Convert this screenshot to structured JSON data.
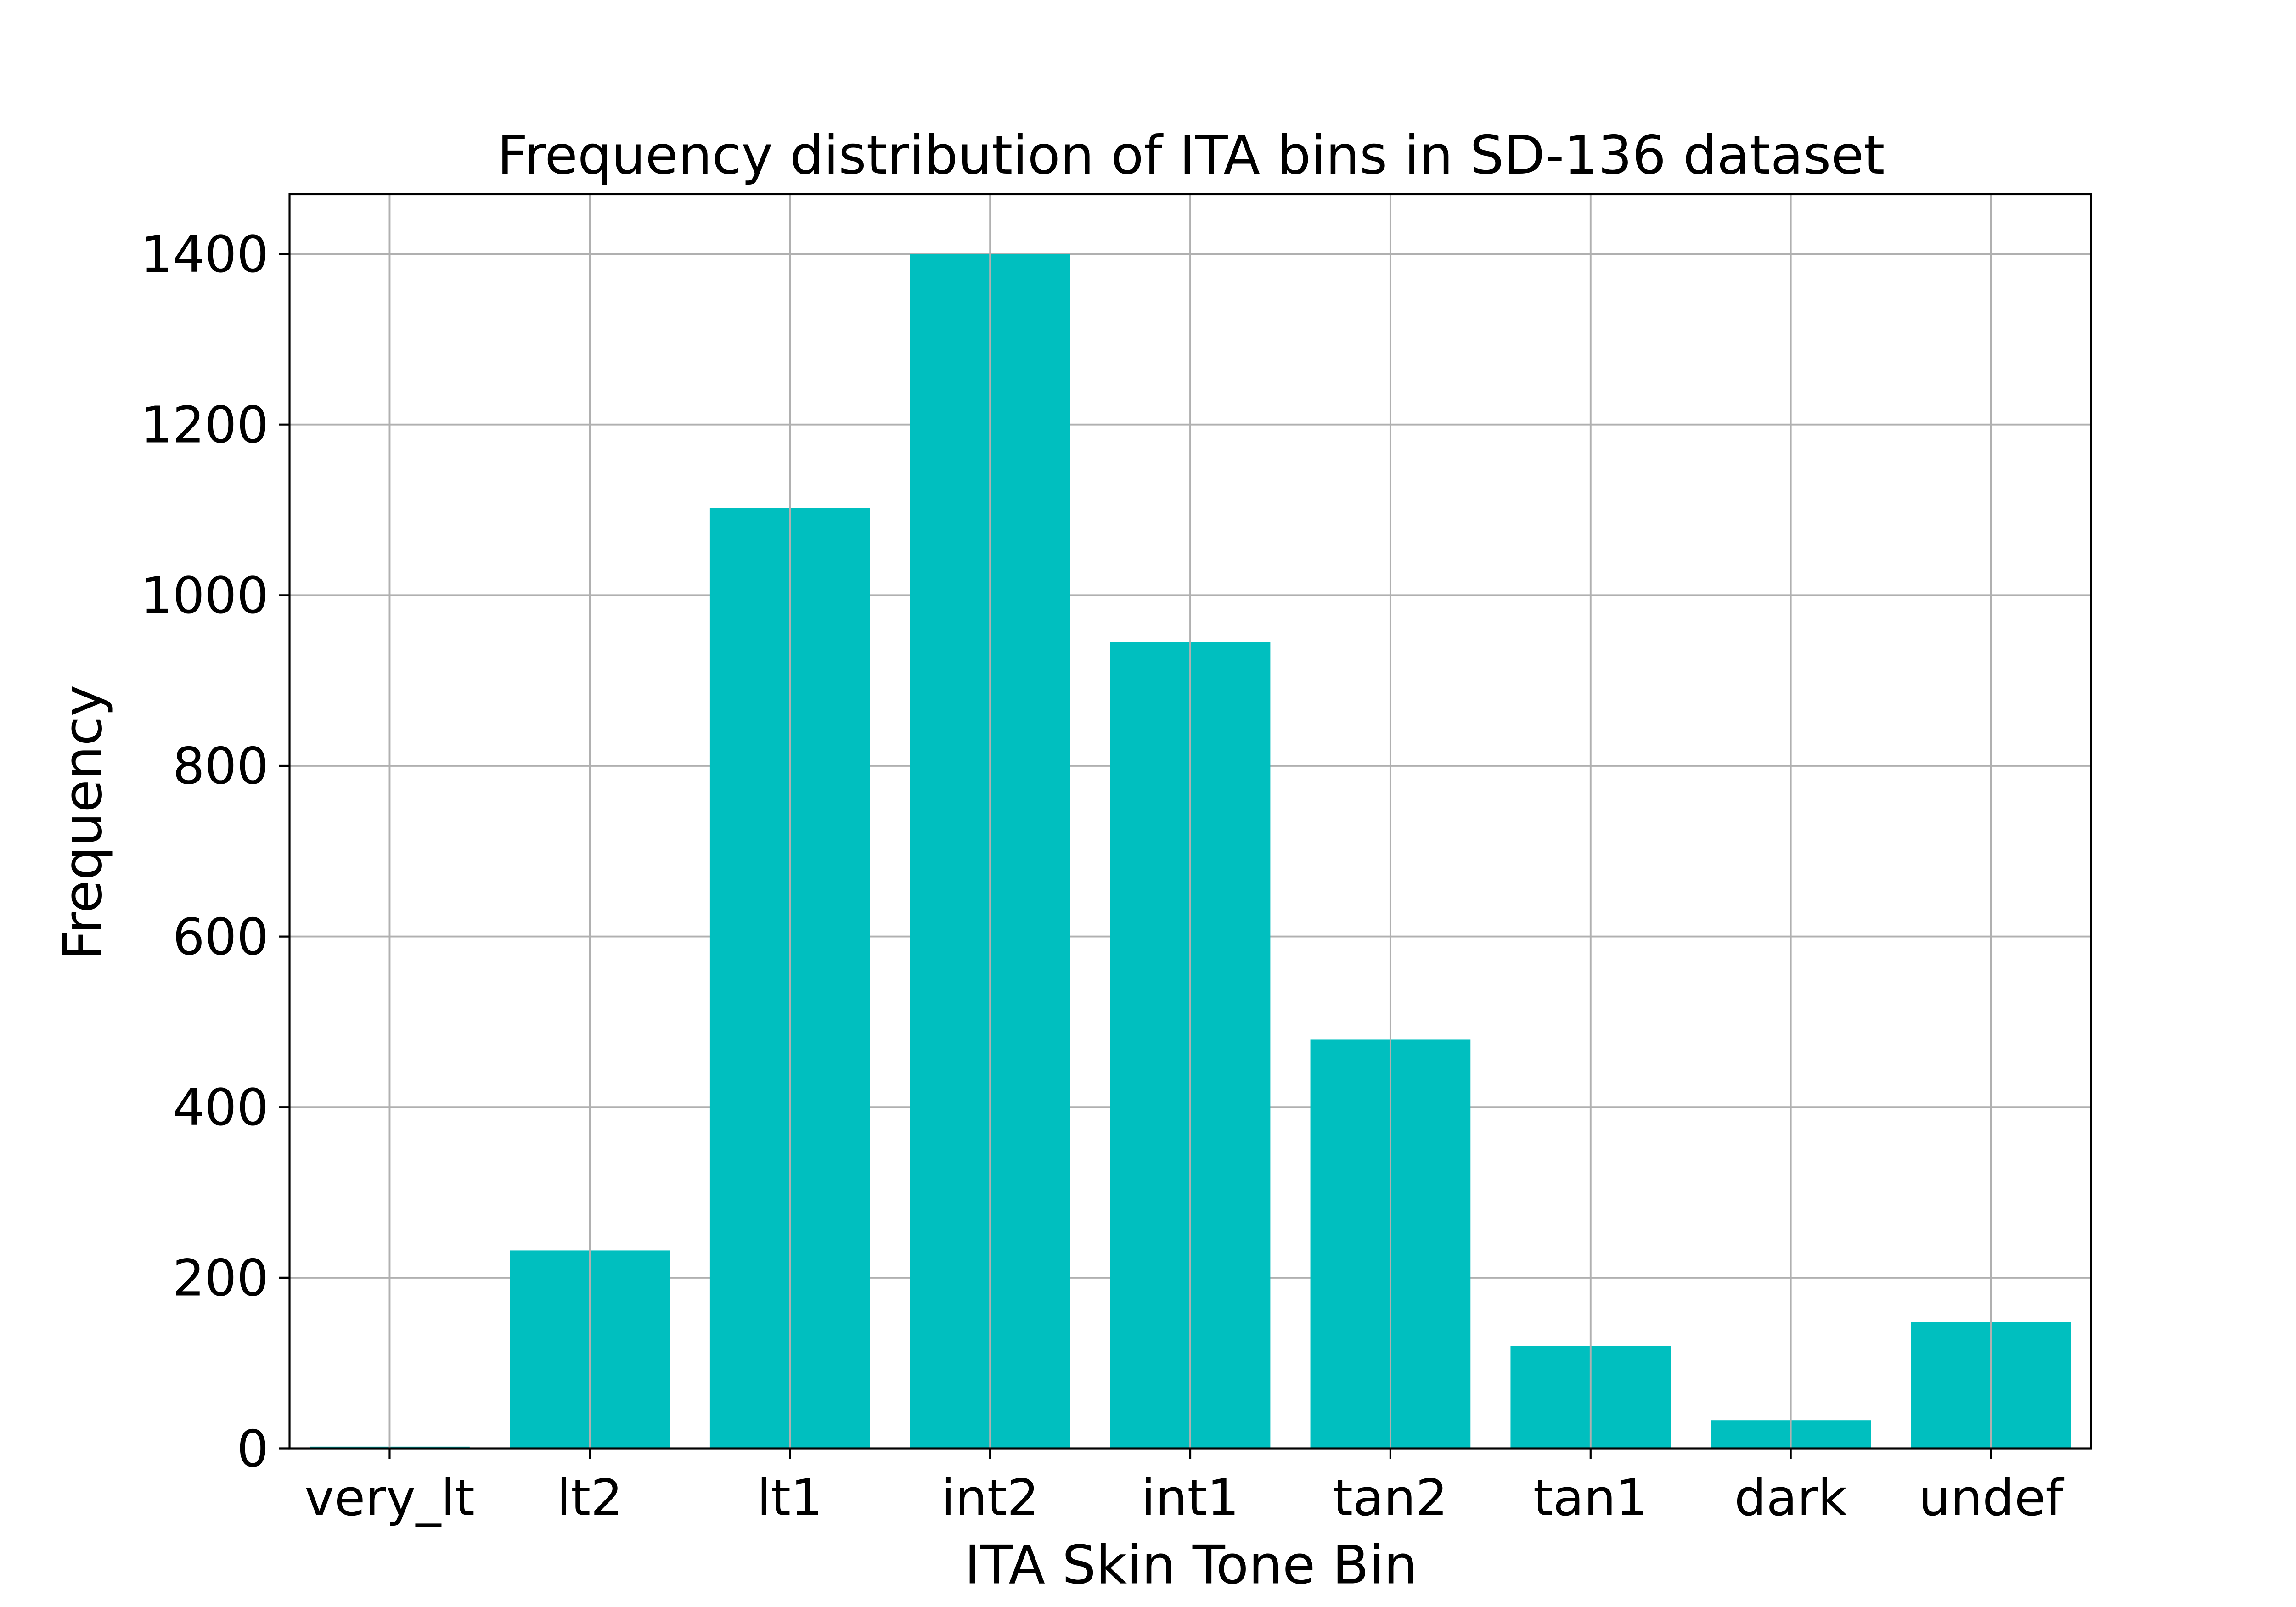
{
  "chart_data": {
    "type": "bar",
    "title": "Frequency distribution of ITA bins in SD-136 dataset",
    "xlabel": "ITA Skin Tone Bin",
    "ylabel": "Frequency",
    "categories": [
      "very_lt",
      "lt2",
      "lt1",
      "int2",
      "int1",
      "tan2",
      "tan1",
      "dark",
      "undef"
    ],
    "values": [
      2,
      232,
      1102,
      1400,
      945,
      479,
      120,
      33,
      148
    ],
    "ylim": [
      0,
      1470
    ],
    "yticks": [
      0,
      200,
      400,
      600,
      800,
      1000,
      1200,
      1400
    ],
    "grid": true,
    "bar_color": "#00bfbf",
    "grid_color": "#b0b0b0"
  }
}
